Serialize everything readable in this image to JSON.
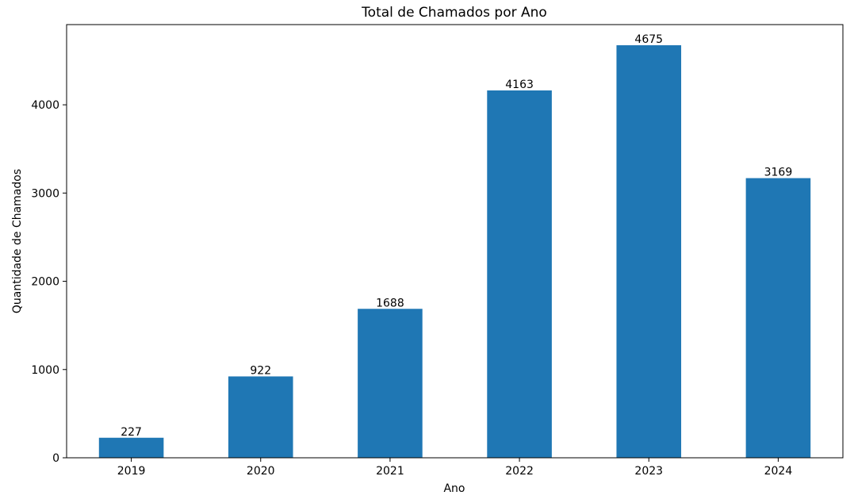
{
  "chart_data": {
    "type": "bar",
    "title": "Total de Chamados por Ano",
    "xlabel": "Ano",
    "ylabel": "Quantidade de Chamados",
    "categories": [
      "2019",
      "2020",
      "2021",
      "2022",
      "2023",
      "2024"
    ],
    "values": [
      227,
      922,
      1688,
      4163,
      4675,
      3169
    ],
    "ylim": [
      0,
      4909
    ],
    "yticks": [
      0,
      1000,
      2000,
      3000,
      4000
    ],
    "grid": false,
    "legend": "none",
    "bar_color": "#1f77b4"
  }
}
